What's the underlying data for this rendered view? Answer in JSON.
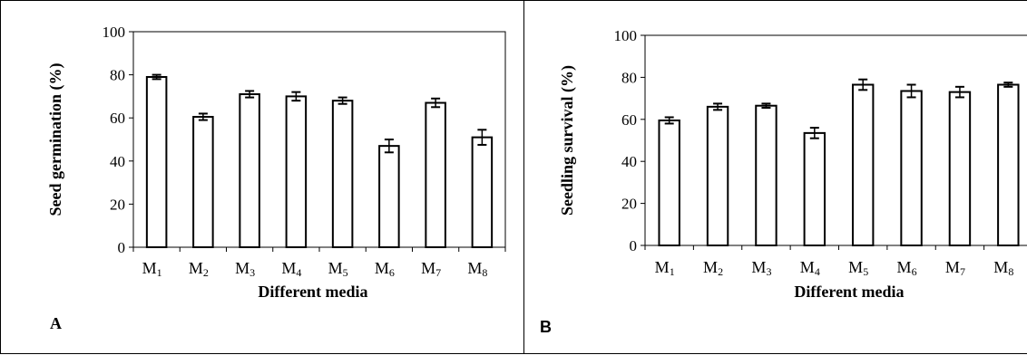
{
  "chart_data": [
    {
      "panel_label": "A",
      "type": "bar",
      "categories": [
        {
          "base": "M",
          "sub": "1"
        },
        {
          "base": "M",
          "sub": "2"
        },
        {
          "base": "M",
          "sub": "3"
        },
        {
          "base": "M",
          "sub": "4"
        },
        {
          "base": "M",
          "sub": "5"
        },
        {
          "base": "M",
          "sub": "6"
        },
        {
          "base": "M",
          "sub": "7"
        },
        {
          "base": "M",
          "sub": "8"
        }
      ],
      "values": [
        79,
        60.5,
        71,
        70,
        68,
        47,
        67,
        51
      ],
      "errors": [
        1,
        1.5,
        1.5,
        2,
        1.5,
        3,
        2,
        3.5
      ],
      "xlabel": "Different media",
      "ylabel": "Seed germination (%)",
      "ylim": [
        0,
        100
      ],
      "yticks": [
        0,
        20,
        40,
        60,
        80,
        100
      ],
      "grid": false,
      "bar_fill": "#ffffff",
      "bar_stroke": "#000000"
    },
    {
      "panel_label": "B",
      "type": "bar",
      "categories": [
        {
          "base": "M",
          "sub": "1"
        },
        {
          "base": "M",
          "sub": "2"
        },
        {
          "base": "M",
          "sub": "3"
        },
        {
          "base": "M",
          "sub": "4"
        },
        {
          "base": "M",
          "sub": "5"
        },
        {
          "base": "M",
          "sub": "6"
        },
        {
          "base": "M",
          "sub": "7"
        },
        {
          "base": "M",
          "sub": "8"
        }
      ],
      "values": [
        59.5,
        66,
        66.5,
        53.5,
        76.5,
        73.5,
        73,
        76.5
      ],
      "errors": [
        1.5,
        1.5,
        1,
        2.5,
        2.5,
        3,
        2.5,
        1
      ],
      "xlabel": "Different media",
      "ylabel": "Seedling survival (%)",
      "ylim": [
        0,
        100
      ],
      "yticks": [
        0,
        20,
        40,
        60,
        80,
        100
      ],
      "grid": false,
      "bar_fill": "#ffffff",
      "bar_stroke": "#000000"
    }
  ]
}
